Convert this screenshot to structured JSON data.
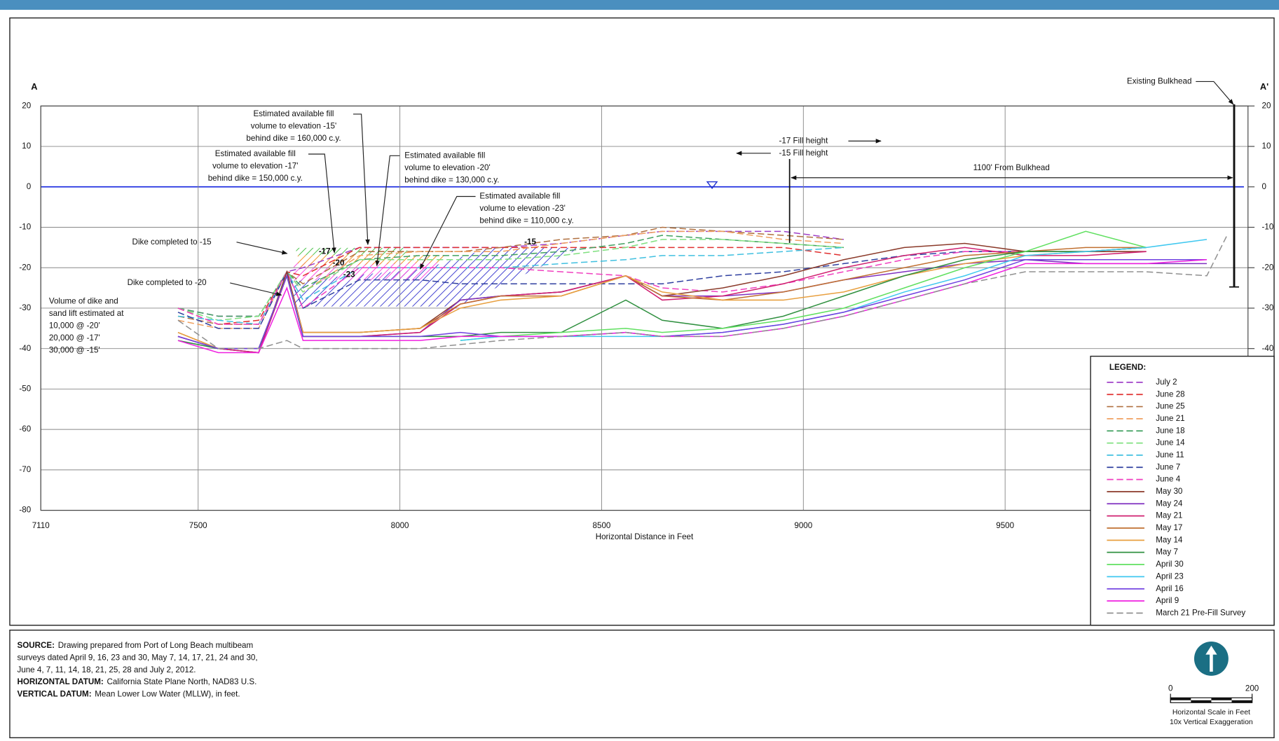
{
  "chart_data": {
    "type": "line",
    "section_start": "A",
    "section_end": "A'",
    "x_label": "Horizontal Distance in Feet",
    "xlim": [
      7110,
      10102
    ],
    "ylim": [
      -80,
      20
    ],
    "xticks": [
      7110,
      7500,
      8000,
      8500,
      9000,
      9500
    ],
    "yticks": [
      20,
      10,
      0,
      -10,
      -20,
      -30,
      -40,
      -50,
      -60,
      -70,
      -80
    ],
    "grid": true,
    "water_level": 0,
    "legend_title": "LEGEND:",
    "legend_position": "bottom-right",
    "x": [
      7450,
      7550,
      7650,
      7720,
      7760,
      7900,
      8050,
      8150,
      8250,
      8400,
      8560,
      8650,
      8800,
      8950,
      9100,
      9250,
      9400,
      9550,
      9700,
      9850,
      10000,
      10050
    ],
    "series": [
      {
        "name": "July 2",
        "color": "#a040c8",
        "dash": true,
        "values": [
          -30,
          -32,
          -32,
          -21,
          -20,
          -15,
          -15,
          -15,
          -15,
          -14,
          -12,
          -11,
          -11,
          -11,
          -13,
          null,
          null,
          null,
          null,
          null,
          null,
          null
        ]
      },
      {
        "name": "June 28",
        "color": "#e03030",
        "dash": true,
        "values": [
          -30,
          -34,
          -33,
          -21,
          -22,
          -15,
          -15,
          -15,
          -15,
          -15,
          -15,
          -15,
          -15,
          -15,
          -17,
          null,
          null,
          null,
          null,
          null,
          null,
          null
        ]
      },
      {
        "name": "June 25",
        "color": "#b07040",
        "dash": true,
        "values": [
          -32,
          -34,
          -34,
          -21,
          -24,
          -16,
          -16,
          -16,
          -15,
          -13,
          -12,
          -10,
          -11,
          -12,
          -13,
          null,
          null,
          null,
          null,
          null,
          null,
          null
        ]
      },
      {
        "name": "June 21",
        "color": "#f0a060",
        "dash": true,
        "values": [
          -33,
          -35,
          -35,
          -21,
          -26,
          -17,
          -16,
          -16,
          -16,
          -14,
          -12,
          -11,
          -11,
          -13,
          -14,
          null,
          null,
          null,
          null,
          null,
          null,
          null
        ]
      },
      {
        "name": "June 18",
        "color": "#40a060",
        "dash": true,
        "values": [
          -30,
          -32,
          -32,
          -21,
          -25,
          -18,
          -17,
          -17,
          -17,
          -16,
          -14,
          -12,
          -13,
          -14,
          -15,
          null,
          null,
          null,
          null,
          null,
          null,
          null
        ]
      },
      {
        "name": "June 14",
        "color": "#80e080",
        "dash": true,
        "values": [
          -30,
          -33,
          -32,
          -21,
          -26,
          -18,
          -18,
          -18,
          -18,
          -17,
          -15,
          -13,
          -13,
          -14,
          -15,
          null,
          null,
          null,
          null,
          null,
          null,
          null
        ]
      },
      {
        "name": "June 11",
        "color": "#40c0e0",
        "dash": true,
        "values": [
          -32,
          -33,
          -34,
          -21,
          -28,
          -20,
          -20,
          -20,
          -20,
          -19,
          -18,
          -17,
          -17,
          -16,
          -15,
          null,
          null,
          null,
          null,
          null,
          null,
          null
        ]
      },
      {
        "name": "June 7",
        "color": "#3040a0",
        "dash": true,
        "values": [
          -31,
          -35,
          -35,
          -21,
          -30,
          -23,
          -23,
          -24,
          -24,
          -24,
          -24,
          -24,
          -22,
          -21,
          -19,
          -17,
          -16,
          -16,
          null,
          null,
          null,
          null
        ]
      },
      {
        "name": "June 4",
        "color": "#f040c0",
        "dash": true,
        "values": [
          -30,
          -34,
          -34,
          -21,
          -30,
          -20,
          -20,
          -20,
          -20,
          -21,
          -22,
          -25,
          -26,
          -24,
          -21,
          -18,
          -16,
          -16,
          -16,
          -15,
          null,
          null
        ]
      },
      {
        "name": "May 30",
        "color": "#8b3a2a",
        "dash": false,
        "values": [
          -37,
          -40,
          -41,
          -21,
          -36,
          -36,
          -35,
          -28,
          -27,
          -26,
          -22,
          -27,
          -25,
          -22,
          -18,
          -15,
          -14,
          -16,
          -16,
          -16,
          null,
          null
        ]
      },
      {
        "name": "May 24",
        "color": "#8030c0",
        "dash": false,
        "values": [
          -37,
          -40,
          -41,
          -22,
          -37,
          -37,
          -36,
          -28,
          -27,
          -26,
          -22,
          -27,
          -27,
          -26,
          -23,
          -21,
          -19,
          -18,
          -19,
          -19,
          -19,
          null
        ]
      },
      {
        "name": "May 21",
        "color": "#d02070",
        "dash": false,
        "values": [
          -37,
          -40,
          -41,
          -22,
          -37,
          -37,
          -36,
          -29,
          -27,
          -26,
          -22,
          -28,
          -27,
          -24,
          -20,
          -17,
          -15,
          -17,
          -17,
          -16,
          null,
          null
        ]
      },
      {
        "name": "May 17",
        "color": "#c07030",
        "dash": false,
        "values": [
          -36,
          -40,
          -40,
          -22,
          -36,
          -36,
          -35,
          -29,
          -27,
          -27,
          -22,
          -27,
          -28,
          -26,
          -23,
          -20,
          -17,
          -16,
          -15,
          -15,
          null,
          null
        ]
      },
      {
        "name": "May 14",
        "color": "#e8a040",
        "dash": false,
        "values": [
          -36,
          -40,
          -40,
          -22,
          -36,
          -36,
          -35,
          -30,
          -28,
          -27,
          -22,
          -26,
          -28,
          -28,
          -26,
          -22,
          -19,
          -17,
          -16,
          -15,
          null,
          null
        ]
      },
      {
        "name": "May 7",
        "color": "#309040",
        "dash": false,
        "values": [
          -38,
          -40,
          -40,
          -22,
          -37,
          -37,
          -37,
          -37,
          -36,
          -36,
          -28,
          -33,
          -35,
          -32,
          -27,
          -22,
          -18,
          -16,
          -16,
          -15,
          null,
          null
        ]
      },
      {
        "name": "April 30",
        "color": "#60e060",
        "dash": false,
        "values": [
          null,
          null,
          null,
          null,
          null,
          null,
          null,
          -38,
          -37,
          -36,
          -35,
          -36,
          -35,
          -33,
          -30,
          -25,
          -20,
          -16,
          -11,
          -15,
          null,
          null
        ]
      },
      {
        "name": "April 23",
        "color": "#40c8f0",
        "dash": false,
        "values": [
          null,
          null,
          null,
          null,
          null,
          null,
          null,
          -38,
          -37,
          -37,
          -37,
          -37,
          -36,
          -34,
          -31,
          -26,
          -22,
          -17,
          -16,
          -15,
          -13,
          null
        ]
      },
      {
        "name": "April 16",
        "color": "#7040e0",
        "dash": false,
        "values": [
          -37,
          -40,
          -40,
          -22,
          -37,
          -37,
          -37,
          -36,
          -37,
          -37,
          -36,
          -37,
          -36,
          -34,
          -31,
          -27,
          -23,
          -18,
          -18,
          -18,
          -18,
          null
        ]
      },
      {
        "name": "April 9",
        "color": "#f020e0",
        "dash": false,
        "values": [
          -38,
          -41,
          -41,
          -25,
          -38,
          -38,
          -38,
          -37,
          -37,
          -37,
          -36,
          -37,
          -37,
          -35,
          -32,
          -28,
          -24,
          -19,
          -19,
          -19,
          -18,
          null
        ]
      },
      {
        "name": "March 21 Pre-Fill Survey",
        "color": "#909090",
        "dash": true,
        "values": [
          -33,
          -40,
          -40,
          -38,
          -40,
          -40,
          -40,
          -39,
          -38,
          -37,
          -36,
          -37,
          -37,
          -35,
          -32,
          -28,
          -24,
          -21,
          -21,
          -21,
          -22,
          -12
        ]
      }
    ],
    "fill_labels": [
      -17,
      -20,
      -23,
      -15
    ],
    "annotations": [
      [
        "Estimated available fill",
        "volume to elevation -15'",
        "behind dike = 160,000 c.y."
      ],
      [
        "Estimated available fill",
        "volume to elevation -17'",
        "behind dike = 150,000 c.y."
      ],
      [
        "Estimated available fill",
        "volume to elevation -20'",
        "behind dike = 130,000 c.y."
      ],
      [
        "Estimated available fill",
        "volume to elevation -23'",
        "behind dike = 110,000 c.y."
      ],
      [
        "Dike completed to -15"
      ],
      [
        "Dike completed to -20"
      ],
      [
        "Volume of dike and",
        "sand lift estimated at",
        "10,000 @ -20'",
        "20,000 @ -17'",
        "30,000 @ -15'"
      ],
      [
        "Existing Bulkhead"
      ],
      [
        "-17 Fill height",
        "-15 Fill height"
      ],
      [
        "1100' From Bulkhead"
      ]
    ]
  },
  "footer": {
    "notes": [
      {
        "label": "SOURCE:",
        "lines": [
          "Drawing prepared from Port of Long Beach multibeam",
          "surveys dated April 9, 16, 23 and 30, May 7, 14, 17, 21, 24 and 30,",
          "June 4, 7, 11, 14, 18, 21, 25, 28 and July 2, 2012."
        ]
      },
      {
        "label": "HORIZONTAL DATUM:",
        "lines": [
          "California State Plane North, NAD83 U.S."
        ]
      },
      {
        "label": "VERTICAL DATUM:",
        "lines": [
          "Mean Lower Low Water (MLLW), in feet."
        ]
      }
    ],
    "scale_ticks": [
      0,
      200
    ],
    "scale_caption": [
      "Horizontal Scale in Feet",
      "10x Vertical Exaggeration"
    ]
  }
}
